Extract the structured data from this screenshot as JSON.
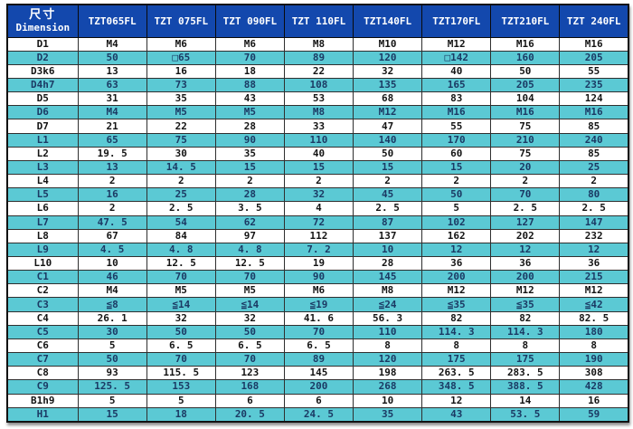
{
  "colors": {
    "header_bg": "#1348ad",
    "stripe_bg": "#5bc9d4",
    "stripe_text": "#1b3a64",
    "plain_text": "#141414"
  },
  "table": {
    "corner_line1": "尺寸",
    "corner_line2": "Dimension",
    "columns": [
      "TZT065FL",
      "TZT 075FL",
      "TZT 090FL",
      "TZT 110FL",
      "TZT140FL",
      "TZT170FL",
      "TZT210FL",
      "TZT 240FL"
    ],
    "rows": [
      {
        "label": "D1",
        "values": [
          "M4",
          "M6",
          "M6",
          "M8",
          "M10",
          "M12",
          "M16",
          "M16"
        ]
      },
      {
        "label": "D2",
        "values": [
          "50",
          "□65",
          "70",
          "89",
          "120",
          "□142",
          "160",
          "205"
        ]
      },
      {
        "label": "D3k6",
        "values": [
          "13",
          "16",
          "18",
          "22",
          "32",
          "40",
          "50",
          "55"
        ]
      },
      {
        "label": "D4h7",
        "values": [
          "63",
          "73",
          "88",
          "108",
          "135",
          "165",
          "205",
          "235"
        ]
      },
      {
        "label": "D5",
        "values": [
          "31",
          "35",
          "43",
          "53",
          "68",
          "83",
          "104",
          "124"
        ]
      },
      {
        "label": "D6",
        "values": [
          "M4",
          "M5",
          "M5",
          "M8",
          "M12",
          "M16",
          "M16",
          "M16"
        ]
      },
      {
        "label": "D7",
        "values": [
          "21",
          "22",
          "28",
          "33",
          "47",
          "55",
          "75",
          "85"
        ]
      },
      {
        "label": "L1",
        "values": [
          "65",
          "75",
          "90",
          "110",
          "140",
          "170",
          "210",
          "240"
        ]
      },
      {
        "label": "L2",
        "values": [
          "19. 5",
          "30",
          "35",
          "40",
          "50",
          "60",
          "75",
          "85"
        ]
      },
      {
        "label": "L3",
        "values": [
          "13",
          "14. 5",
          "15",
          "15",
          "15",
          "15",
          "20",
          "25"
        ]
      },
      {
        "label": "L4",
        "values": [
          "2",
          "2",
          "2",
          "2",
          "2",
          "2",
          "2",
          "2"
        ]
      },
      {
        "label": "L5",
        "values": [
          "16",
          "25",
          "28",
          "32",
          "45",
          "50",
          "70",
          "80"
        ]
      },
      {
        "label": "L6",
        "values": [
          "2",
          "2. 5",
          "3. 5",
          "4",
          "2. 5",
          "5",
          "2. 5",
          "2. 5"
        ]
      },
      {
        "label": "L7",
        "values": [
          "47. 5",
          "54",
          "62",
          "72",
          "87",
          "102",
          "127",
          "147"
        ]
      },
      {
        "label": "L8",
        "values": [
          "67",
          "84",
          "97",
          "112",
          "137",
          "162",
          "202",
          "232"
        ]
      },
      {
        "label": "L9",
        "values": [
          "4. 5",
          "4. 8",
          "4. 8",
          "7. 2",
          "10",
          "12",
          "12",
          "12"
        ]
      },
      {
        "label": "L10",
        "values": [
          "10",
          "12. 5",
          "12. 5",
          "19",
          "28",
          "36",
          "36",
          "36"
        ]
      },
      {
        "label": "C1",
        "values": [
          "46",
          "70",
          "70",
          "90",
          "145",
          "200",
          "200",
          "215"
        ]
      },
      {
        "label": "C2",
        "values": [
          "M4",
          "M5",
          "M5",
          "M6",
          "M8",
          "M12",
          "M12",
          "M12"
        ]
      },
      {
        "label": "C3",
        "values": [
          "≦8",
          "≦14",
          "≦14",
          "≦19",
          "≦24",
          "≦35",
          "≦35",
          "≦42"
        ]
      },
      {
        "label": "C4",
        "values": [
          "26. 1",
          "32",
          "32",
          "41. 6",
          "56. 3",
          "82",
          "82",
          "82. 5"
        ]
      },
      {
        "label": "C5",
        "values": [
          "30",
          "50",
          "50",
          "70",
          "110",
          "114. 3",
          "114. 3",
          "180"
        ]
      },
      {
        "label": "C6",
        "values": [
          "5",
          "6. 5",
          "6. 5",
          "6. 5",
          "8",
          "8",
          "8",
          "8"
        ]
      },
      {
        "label": "C7",
        "values": [
          "50",
          "70",
          "70",
          "89",
          "120",
          "175",
          "175",
          "190"
        ]
      },
      {
        "label": "C8",
        "values": [
          "93",
          "115. 5",
          "123",
          "145",
          "198",
          "263. 5",
          "283. 5",
          "308"
        ]
      },
      {
        "label": "C9",
        "values": [
          "125. 5",
          "153",
          "168",
          "200",
          "268",
          "348. 5",
          "388. 5",
          "428"
        ]
      },
      {
        "label": "B1h9",
        "values": [
          "5",
          "5",
          "6",
          "6",
          "10",
          "12",
          "14",
          "16"
        ]
      },
      {
        "label": "H1",
        "values": [
          "15",
          "18",
          "20. 5",
          "24. 5",
          "35",
          "43",
          "53. 5",
          "59"
        ]
      }
    ]
  }
}
